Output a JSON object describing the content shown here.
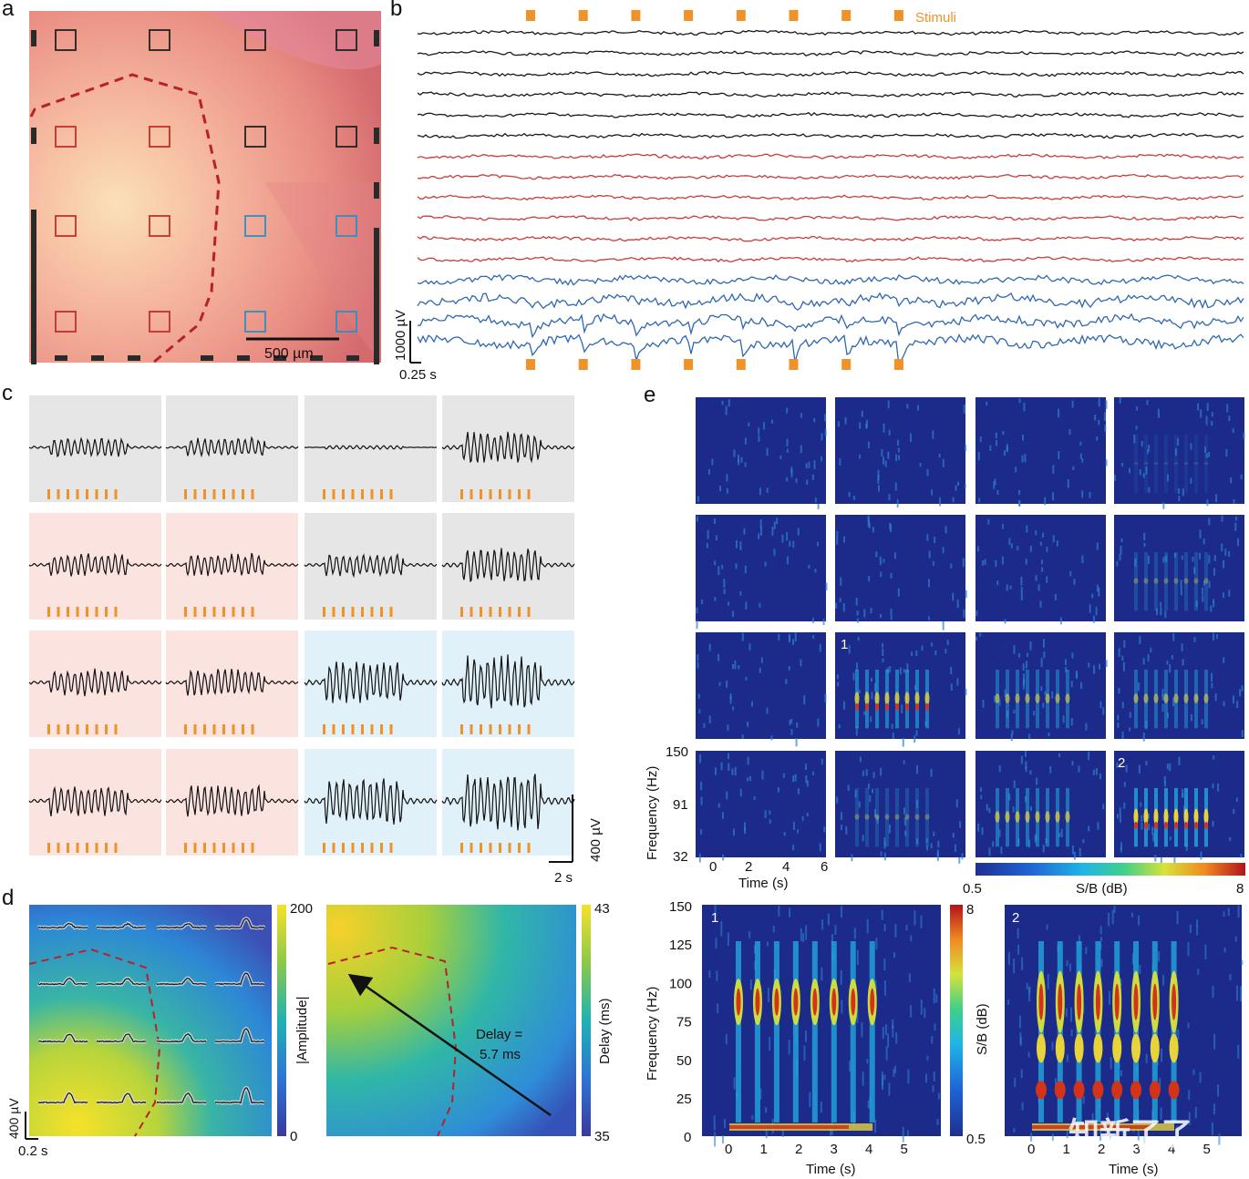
{
  "panels": {
    "a": {
      "label": "a",
      "scalebar_text": "500 µm",
      "grid_colors": [
        [
          "black",
          "black",
          "black",
          "black"
        ],
        [
          "red",
          "red",
          "black",
          "black"
        ],
        [
          "red",
          "red",
          "blue",
          "blue"
        ],
        [
          "red",
          "red",
          "blue",
          "blue"
        ]
      ]
    },
    "b": {
      "label": "b",
      "stimuli_label": "Stimuli",
      "scale_v": "1000 µV",
      "scale_t": "0.25 s",
      "trace_colors": [
        "black",
        "black",
        "black",
        "black",
        "black",
        "black",
        "red",
        "red",
        "red",
        "red",
        "red",
        "red",
        "blue",
        "blue",
        "blue",
        "blue"
      ],
      "stimulus_count": 8
    },
    "c": {
      "label": "c",
      "scale_v": "400 µV",
      "scale_t": "2 s",
      "backgrounds": [
        [
          "gray",
          "gray",
          "gray",
          "gray"
        ],
        [
          "pink",
          "pink",
          "gray",
          "gray"
        ],
        [
          "pink",
          "pink",
          "blue",
          "blue"
        ],
        [
          "pink",
          "pink",
          "blue",
          "blue"
        ]
      ],
      "stimulus_count": 8
    },
    "d": {
      "label": "d",
      "scale_v": "400 µV",
      "scale_t": "0.2 s",
      "amplitude_colorbar": {
        "label": "|Amplitude|",
        "max": "200",
        "min": "0"
      },
      "delay_colorbar": {
        "label": "Delay (ms)",
        "max": "43",
        "min": "35"
      },
      "delay_annotation_line1": "Delay =",
      "delay_annotation_line2": "5.7 ms"
    },
    "e": {
      "label": "e",
      "small_ylabel": "Frequency (Hz)",
      "small_yticks": [
        "150",
        "91",
        "32"
      ],
      "small_xlabel": "Time (s)",
      "small_xticks": [
        "0",
        "2",
        "4",
        "6"
      ],
      "shared_colorbar": {
        "label": "S/B (dB)",
        "min": "0.5",
        "max": "8"
      },
      "marker_1": "1",
      "marker_2": "2",
      "large_ylabel": "Frequency (Hz)",
      "large_yticks": [
        "150",
        "125",
        "100",
        "75",
        "50",
        "25",
        "0"
      ],
      "large_xlabel": "Time (s)",
      "large_xticks_1": [
        "0",
        "1",
        "2",
        "3",
        "4",
        "5"
      ],
      "large_xticks_2": [
        "0",
        "1",
        "2",
        "3",
        "4",
        "5"
      ],
      "large_colorbar": {
        "label": "S/B (dB)",
        "max": "8",
        "min": "0.5"
      }
    }
  },
  "colors": {
    "stimulus": "#f0922a",
    "trace_black": "#1a1a1a",
    "trace_red": "#cc3b3b",
    "trace_blue": "#2f67b0",
    "dashed_outline": "#b8202a"
  },
  "watermark": "知新了了"
}
